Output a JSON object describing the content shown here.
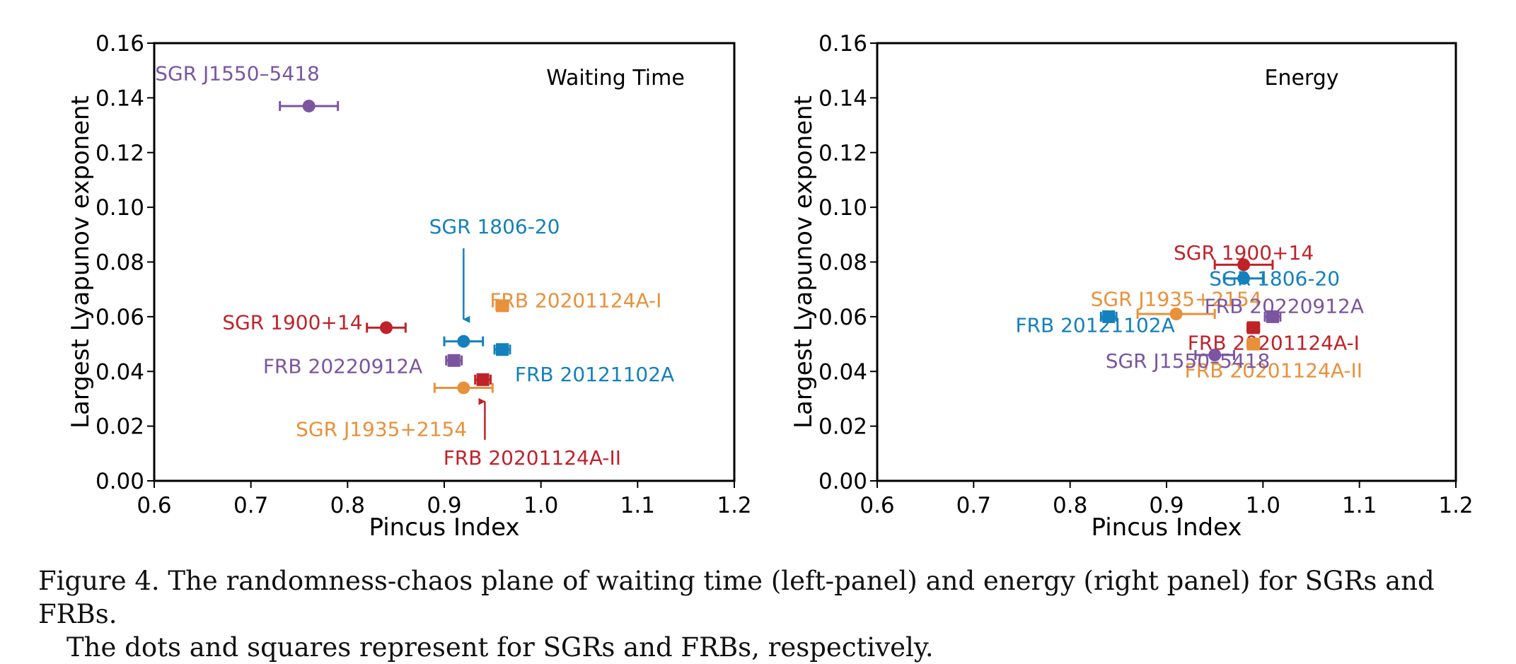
{
  "chart_data": [
    {
      "type": "scatter",
      "title": "Waiting Time",
      "xlabel": "Pincus Index",
      "ylabel": "Largest Lyapunov exponent",
      "xlim": [
        0.6,
        1.2
      ],
      "ylim": [
        0.0,
        0.16
      ],
      "xticks": [
        "0.6",
        "0.7",
        "0.8",
        "0.9",
        "1.0",
        "1.1",
        "1.2"
      ],
      "yticks": [
        "0.00",
        "0.02",
        "0.04",
        "0.06",
        "0.08",
        "0.10",
        "0.12",
        "0.14",
        "0.16"
      ],
      "grid": false,
      "points": [
        {
          "label": "SGR J1550–5418",
          "x": 0.76,
          "y": 0.137,
          "xerr": 0.03,
          "marker": "circle",
          "color": "#7b55a0",
          "label_x": 0.686,
          "label_y": 0.149
        },
        {
          "label": "SGR 1806-20",
          "x": 0.92,
          "y": 0.051,
          "xerr": 0.02,
          "marker": "circle",
          "color": "#1480bc",
          "label_x": 0.952,
          "label_y": 0.093
        },
        {
          "label": "FRB 20201124A-I",
          "x": 0.96,
          "y": 0.064,
          "xerr": 0.006,
          "marker": "square",
          "color": "#e8913b",
          "label_x": 1.036,
          "label_y": 0.066
        },
        {
          "label": "SGR 1900+14",
          "x": 0.84,
          "y": 0.056,
          "xerr": 0.02,
          "marker": "circle",
          "color": "#c0222a",
          "label_x": 0.743,
          "label_y": 0.058
        },
        {
          "label": "FRB 20121102A",
          "x": 0.96,
          "y": 0.048,
          "xerr": 0.008,
          "marker": "square",
          "color": "#1480bc",
          "label_x": 1.0555,
          "label_y": 0.039
        },
        {
          "label": "FRB 20220912A",
          "x": 0.91,
          "y": 0.044,
          "xerr": 0.008,
          "marker": "square",
          "color": "#7b55a0",
          "label_x": 0.795,
          "label_y": 0.042
        },
        {
          "label": "FRB 20201124A-II",
          "x": 0.94,
          "y": 0.037,
          "xerr": 0.008,
          "marker": "square",
          "color": "#c0222a",
          "label_x": 0.991,
          "label_y": 0.0085
        },
        {
          "label": "SGR J1935+2154",
          "x": 0.92,
          "y": 0.034,
          "xerr": 0.03,
          "marker": "circle",
          "color": "#e8913b",
          "label_x": 0.835,
          "label_y": 0.019
        }
      ],
      "annotations": [
        {
          "text": "SGR 1806-20",
          "from": [
            0.92,
            0.085
          ],
          "to": [
            0.92,
            0.059
          ],
          "color": "#1480bc"
        },
        {
          "text": "FRB 20201124A-II",
          "from": [
            0.942,
            0.015
          ],
          "to": [
            0.942,
            0.029
          ],
          "color": "#c0222a"
        }
      ]
    },
    {
      "type": "scatter",
      "title": "Energy",
      "xlabel": "Pincus Index",
      "ylabel": "Largest Lyapunov exponent",
      "xlim": [
        0.6,
        1.2
      ],
      "ylim": [
        0.0,
        0.16
      ],
      "xticks": [
        "0.6",
        "0.7",
        "0.8",
        "0.9",
        "1.0",
        "1.1",
        "1.2"
      ],
      "yticks": [
        "0.00",
        "0.02",
        "0.04",
        "0.06",
        "0.08",
        "0.10",
        "0.12",
        "0.14",
        "0.16"
      ],
      "grid": false,
      "points": [
        {
          "label": "SGR 1900+14",
          "x": 0.98,
          "y": 0.079,
          "xerr": 0.03,
          "marker": "circle",
          "color": "#c0222a",
          "label_x": 0.98,
          "label_y": 0.0835
        },
        {
          "label": "SGR 1806-20",
          "x": 0.98,
          "y": 0.074,
          "xerr": 0.02,
          "marker": "circle",
          "color": "#1480bc",
          "label_x": 1.012,
          "label_y": 0.074
        },
        {
          "label": "SGR J1935+2154",
          "x": 0.91,
          "y": 0.061,
          "xerr": 0.04,
          "marker": "circle",
          "color": "#e8913b",
          "label_x": 0.91,
          "label_y": 0.0665
        },
        {
          "label": "FRB 20220912A",
          "x": 1.01,
          "y": 0.06,
          "xerr": 0.008,
          "marker": "square",
          "color": "#7b55a0",
          "label_x": 1.022,
          "label_y": 0.064
        },
        {
          "label": "FRB 20121102A",
          "x": 0.84,
          "y": 0.06,
          "xerr": 0.008,
          "marker": "square",
          "color": "#1480bc",
          "label_x": 0.826,
          "label_y": 0.057
        },
        {
          "label": "FRB 20201124A-I",
          "x": 0.99,
          "y": 0.056,
          "xerr": 0.006,
          "marker": "square",
          "color": "#c0222a",
          "label_x": 1.011,
          "label_y": 0.0505
        },
        {
          "label": "FRB 20201124A-II",
          "x": 0.99,
          "y": 0.05,
          "xerr": 0.006,
          "marker": "square",
          "color": "#e8913b",
          "label_x": 1.011,
          "label_y": 0.0405
        },
        {
          "label": "SGR J1550–5418",
          "x": 0.95,
          "y": 0.046,
          "xerr": 0.02,
          "marker": "circle",
          "color": "#7b55a0",
          "label_x": 0.922,
          "label_y": 0.044
        }
      ],
      "annotations": []
    }
  ],
  "caption": {
    "line1": "Figure 4.   The randomness-chaos plane of waiting time (left-panel) and energy (right panel) for SGRs and FRBs.",
    "line2": "The dots and squares represent for SGRs and FRBs, respectively."
  }
}
